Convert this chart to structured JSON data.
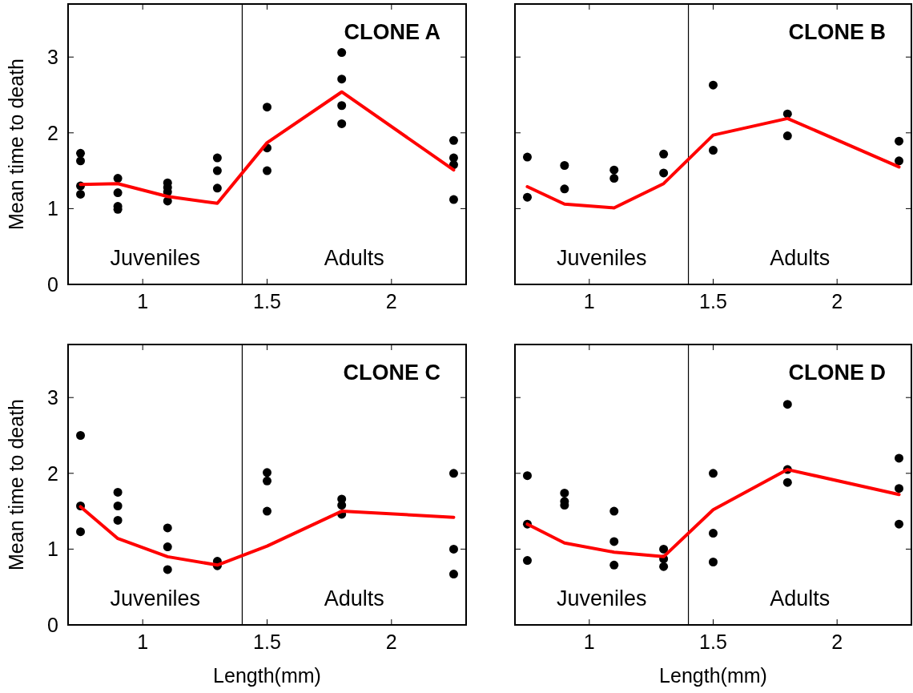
{
  "chart_data": [
    {
      "type": "scatter",
      "title": "CLONE A",
      "ylabel": "Mean time to death",
      "xlim": [
        0.7,
        2.3
      ],
      "xticks": [
        1,
        1.5,
        2
      ],
      "ylim": [
        0,
        3.7
      ],
      "yticks": [
        0,
        1,
        2,
        3
      ],
      "marker": "circle",
      "grid": false,
      "annotations": [
        "Juveniles",
        "Adults"
      ],
      "ref_lines": [
        {
          "axis": "x",
          "value": 1.4,
          "color": "#000000"
        }
      ],
      "series": [
        {
          "color": "#000000",
          "x": [
            0.75,
            0.75,
            0.75,
            0.75,
            0.9,
            0.9,
            0.9,
            0.9,
            1.1,
            1.1,
            1.1,
            1.1,
            1.3,
            1.3,
            1.3,
            1.5,
            1.5,
            1.5,
            1.8,
            1.8,
            1.8,
            1.8,
            2.25,
            2.25,
            2.25,
            2.25
          ],
          "values": [
            1.73,
            1.63,
            1.3,
            1.19,
            1.4,
            1.21,
            1.03,
            0.99,
            1.34,
            1.28,
            1.22,
            1.1,
            1.67,
            1.5,
            1.27,
            2.34,
            1.8,
            1.5,
            3.06,
            2.71,
            2.36,
            2.12,
            1.9,
            1.67,
            1.58,
            1.12
          ]
        },
        {
          "type": "line",
          "color": "#ff0000",
          "marker": "none",
          "x": [
            0.75,
            0.9,
            1.1,
            1.3,
            1.5,
            1.8,
            2.25
          ],
          "values": [
            1.32,
            1.33,
            1.16,
            1.07,
            1.87,
            2.54,
            1.51
          ]
        }
      ]
    },
    {
      "type": "scatter",
      "title": "CLONE B",
      "tick_labels": "x",
      "xlim": [
        0.7,
        2.3
      ],
      "xticks": [
        1,
        1.5,
        2
      ],
      "ylim": [
        0,
        3.7
      ],
      "yticks": [
        0,
        1,
        2,
        3
      ],
      "marker": "circle",
      "grid": false,
      "annotations": [
        "Juveniles",
        "Adults"
      ],
      "ref_lines": [
        {
          "axis": "x",
          "value": 1.4,
          "color": "#000000"
        }
      ],
      "series": [
        {
          "color": "#000000",
          "x": [
            0.75,
            0.75,
            0.9,
            0.9,
            1.1,
            1.1,
            1.3,
            1.3,
            1.5,
            1.5,
            1.8,
            1.8,
            2.25,
            2.25
          ],
          "values": [
            1.68,
            1.15,
            1.57,
            1.26,
            1.51,
            1.4,
            1.72,
            1.47,
            2.63,
            1.77,
            2.25,
            1.96,
            1.89,
            1.63
          ]
        },
        {
          "type": "line",
          "color": "#ff0000",
          "marker": "none",
          "x": [
            0.75,
            0.9,
            1.1,
            1.3,
            1.5,
            1.8,
            2.25
          ],
          "values": [
            1.29,
            1.06,
            1.01,
            1.33,
            1.97,
            2.19,
            1.55
          ]
        }
      ]
    },
    {
      "type": "scatter",
      "title": "CLONE C",
      "ylabel": "Mean time to death",
      "xlabel": "Length(mm)",
      "xlim": [
        0.7,
        2.3
      ],
      "xticks": [
        1,
        1.5,
        2
      ],
      "ylim": [
        0,
        3.7
      ],
      "yticks": [
        0,
        1,
        2,
        3
      ],
      "marker": "circle",
      "grid": false,
      "annotations": [
        "Juveniles",
        "Adults"
      ],
      "ref_lines": [
        {
          "axis": "x",
          "value": 1.4,
          "color": "#000000"
        }
      ],
      "series": [
        {
          "color": "#000000",
          "x": [
            0.75,
            0.75,
            0.75,
            0.9,
            0.9,
            0.9,
            1.1,
            1.1,
            1.1,
            1.3,
            1.3,
            1.5,
            1.5,
            1.5,
            1.8,
            1.8,
            1.8,
            2.25,
            2.25,
            2.25
          ],
          "values": [
            2.5,
            1.57,
            1.23,
            1.75,
            1.57,
            1.38,
            1.28,
            1.03,
            0.73,
            0.84,
            0.78,
            2.01,
            1.9,
            1.5,
            1.66,
            1.58,
            1.46,
            2.0,
            1.0,
            0.67
          ]
        },
        {
          "type": "line",
          "color": "#ff0000",
          "marker": "none",
          "x": [
            0.75,
            0.9,
            1.1,
            1.3,
            1.5,
            1.8,
            2.25
          ],
          "values": [
            1.56,
            1.14,
            0.9,
            0.79,
            1.04,
            1.5,
            1.42
          ]
        }
      ]
    },
    {
      "type": "scatter",
      "title": "CLONE D",
      "xlabel": "Length(mm)",
      "tick_labels": "x",
      "xlim": [
        0.7,
        2.3
      ],
      "xticks": [
        1,
        1.5,
        2
      ],
      "ylim": [
        0,
        3.7
      ],
      "yticks": [
        0,
        1,
        2,
        3
      ],
      "marker": "circle",
      "grid": false,
      "annotations": [
        "Juveniles",
        "Adults"
      ],
      "ref_lines": [
        {
          "axis": "x",
          "value": 1.4,
          "color": "#000000"
        }
      ],
      "series": [
        {
          "color": "#000000",
          "x": [
            0.75,
            0.75,
            0.75,
            0.9,
            0.9,
            0.9,
            1.1,
            1.1,
            1.1,
            1.3,
            1.3,
            1.3,
            1.5,
            1.5,
            1.5,
            1.8,
            1.8,
            1.8,
            2.25,
            2.25,
            2.25
          ],
          "values": [
            1.97,
            1.33,
            0.85,
            1.74,
            1.63,
            1.58,
            1.5,
            1.1,
            0.79,
            1.0,
            0.87,
            0.77,
            2.0,
            1.21,
            0.83,
            2.91,
            2.05,
            1.88,
            2.2,
            1.8,
            1.33
          ]
        },
        {
          "type": "line",
          "color": "#ff0000",
          "marker": "none",
          "x": [
            0.75,
            0.9,
            1.1,
            1.3,
            1.5,
            1.8,
            2.25
          ],
          "values": [
            1.33,
            1.08,
            0.96,
            0.9,
            1.52,
            2.05,
            1.72
          ]
        }
      ]
    }
  ]
}
